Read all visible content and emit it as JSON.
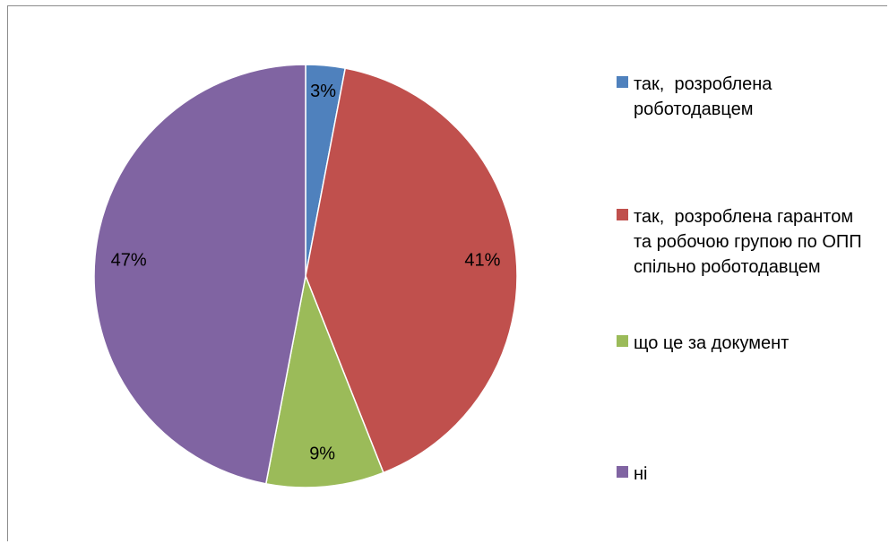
{
  "chart_data": {
    "type": "pie",
    "title": "",
    "legend_position": "right",
    "slices": [
      {
        "label": "так,  розроблена роботодавцем",
        "value": 3,
        "display": "3%",
        "color": "#4f81bd"
      },
      {
        "label": "так,  розроблена гарантом та робочою групою по ОПП спільно роботодавцем",
        "value": 41,
        "display": "41%",
        "color": "#c0504d"
      },
      {
        "label": "що це за документ",
        "value": 9,
        "display": "9%",
        "color": "#9bbb59"
      },
      {
        "label": "ні",
        "value": 47,
        "display": "47%",
        "color": "#8064a2"
      }
    ]
  }
}
